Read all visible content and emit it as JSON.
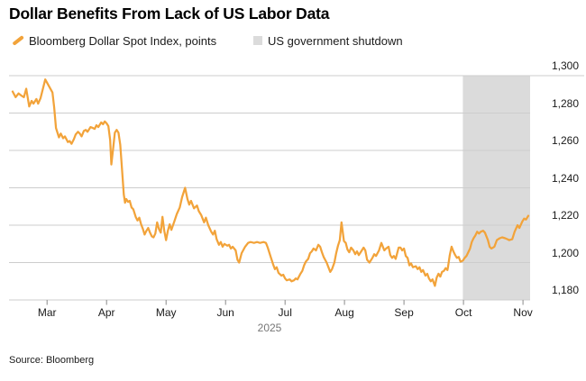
{
  "title": "Dollar Benefits From Lack of US Labor Data",
  "legend": {
    "series_label": "Bloomberg Dollar Spot Index, points",
    "band_label": "US government shutdown"
  },
  "source": "Source: Bloomberg",
  "colors": {
    "line": "#F2A33A",
    "band": "#DBDBDB",
    "grid": "#CDCDCD",
    "tick": "#8A8A8A",
    "axis_text": "#1A1A1A",
    "year_text": "#767676"
  },
  "chart_data": {
    "type": "line",
    "title": "Dollar Benefits From Lack of US Labor Data",
    "x_unit": "months since 2025-03-01",
    "x_range": [
      -0.64,
      8.12
    ],
    "x_tick_labels": [
      "Mar",
      "Apr",
      "May",
      "Jun",
      "Jul",
      "Aug",
      "Sep",
      "Oct",
      "Nov"
    ],
    "x_axis_label": "2025",
    "y_range": [
      1180,
      1300
    ],
    "y_ticks": [
      {
        "v": 1300,
        "label": "1,300"
      },
      {
        "v": 1280,
        "label": "1,280"
      },
      {
        "v": 1260,
        "label": "1,260"
      },
      {
        "v": 1240,
        "label": "1,240"
      },
      {
        "v": 1220,
        "label": "1,220"
      },
      {
        "v": 1200,
        "label": "1,200"
      },
      {
        "v": 1180,
        "label": "1,180"
      }
    ],
    "grid": "horizontal",
    "legend_position": "top",
    "shaded_region": {
      "label": "US government shutdown",
      "x_from": 6.99,
      "x_to": 8.12
    },
    "series": [
      {
        "name": "Bloomberg Dollar Spot Index, points",
        "points": [
          [
            -0.58,
            1291.5
          ],
          [
            -0.53,
            1288.5
          ],
          [
            -0.48,
            1290.5
          ],
          [
            -0.44,
            1289.5
          ],
          [
            -0.39,
            1288.5
          ],
          [
            -0.35,
            1293
          ],
          [
            -0.3,
            1283.5
          ],
          [
            -0.26,
            1286.5
          ],
          [
            -0.23,
            1285
          ],
          [
            -0.18,
            1287.5
          ],
          [
            -0.15,
            1285
          ],
          [
            -0.11,
            1288
          ],
          [
            -0.03,
            1298
          ],
          [
            0.03,
            1294.5
          ],
          [
            0.09,
            1291
          ],
          [
            0.12,
            1283
          ],
          [
            0.15,
            1272
          ],
          [
            0.2,
            1267
          ],
          [
            0.23,
            1269
          ],
          [
            0.27,
            1266.5
          ],
          [
            0.3,
            1267.5
          ],
          [
            0.35,
            1264.5
          ],
          [
            0.38,
            1265
          ],
          [
            0.41,
            1263.5
          ],
          [
            0.45,
            1266
          ],
          [
            0.48,
            1268.5
          ],
          [
            0.52,
            1270
          ],
          [
            0.55,
            1269
          ],
          [
            0.58,
            1267.5
          ],
          [
            0.62,
            1270.5
          ],
          [
            0.65,
            1271
          ],
          [
            0.68,
            1270
          ],
          [
            0.73,
            1272.5
          ],
          [
            0.77,
            1272
          ],
          [
            0.8,
            1271.5
          ],
          [
            0.83,
            1273.5
          ],
          [
            0.86,
            1272.5
          ],
          [
            0.91,
            1275
          ],
          [
            0.94,
            1274
          ],
          [
            0.97,
            1275.5
          ],
          [
            1.0,
            1274.5
          ],
          [
            1.03,
            1273
          ],
          [
            1.06,
            1265.5
          ],
          [
            1.08,
            1252.5
          ],
          [
            1.11,
            1261
          ],
          [
            1.14,
            1269.5
          ],
          [
            1.17,
            1271
          ],
          [
            1.2,
            1269.5
          ],
          [
            1.23,
            1263
          ],
          [
            1.26,
            1249.5
          ],
          [
            1.29,
            1236.5
          ],
          [
            1.31,
            1232
          ],
          [
            1.33,
            1234
          ],
          [
            1.36,
            1232.5
          ],
          [
            1.39,
            1233
          ],
          [
            1.42,
            1229.5
          ],
          [
            1.45,
            1228.5
          ],
          [
            1.49,
            1224.5
          ],
          [
            1.52,
            1222.5
          ],
          [
            1.55,
            1224
          ],
          [
            1.58,
            1220.5
          ],
          [
            1.61,
            1218
          ],
          [
            1.64,
            1215
          ],
          [
            1.67,
            1217
          ],
          [
            1.7,
            1218.5
          ],
          [
            1.73,
            1216
          ],
          [
            1.76,
            1214
          ],
          [
            1.79,
            1213.5
          ],
          [
            1.82,
            1215.5
          ],
          [
            1.85,
            1221.5
          ],
          [
            1.88,
            1218
          ],
          [
            1.91,
            1216
          ],
          [
            1.94,
            1224.5
          ],
          [
            1.97,
            1217
          ],
          [
            2.0,
            1212
          ],
          [
            2.03,
            1217
          ],
          [
            2.06,
            1220.5
          ],
          [
            2.09,
            1217.5
          ],
          [
            2.14,
            1222
          ],
          [
            2.18,
            1226
          ],
          [
            2.23,
            1229.5
          ],
          [
            2.27,
            1235
          ],
          [
            2.32,
            1240
          ],
          [
            2.36,
            1234
          ],
          [
            2.39,
            1231
          ],
          [
            2.42,
            1233
          ],
          [
            2.47,
            1229
          ],
          [
            2.52,
            1230.5
          ],
          [
            2.55,
            1227.5
          ],
          [
            2.59,
            1225.5
          ],
          [
            2.64,
            1221.5
          ],
          [
            2.67,
            1224
          ],
          [
            2.71,
            1220
          ],
          [
            2.76,
            1216.5
          ],
          [
            2.79,
            1215
          ],
          [
            2.82,
            1217
          ],
          [
            2.85,
            1212.5
          ],
          [
            2.89,
            1209.5
          ],
          [
            2.92,
            1211
          ],
          [
            2.95,
            1208.5
          ],
          [
            2.98,
            1210
          ],
          [
            3.03,
            1209
          ],
          [
            3.06,
            1209.5
          ],
          [
            3.09,
            1207.5
          ],
          [
            3.12,
            1208.5
          ],
          [
            3.17,
            1206.5
          ],
          [
            3.2,
            1201.5
          ],
          [
            3.23,
            1200
          ],
          [
            3.27,
            1205
          ],
          [
            3.33,
            1208.5
          ],
          [
            3.38,
            1210.5
          ],
          [
            3.42,
            1211
          ],
          [
            3.48,
            1210.5
          ],
          [
            3.53,
            1211
          ],
          [
            3.58,
            1210.5
          ],
          [
            3.64,
            1211
          ],
          [
            3.68,
            1210.5
          ],
          [
            3.71,
            1208
          ],
          [
            3.76,
            1203
          ],
          [
            3.8,
            1199
          ],
          [
            3.83,
            1196.5
          ],
          [
            3.86,
            1197.5
          ],
          [
            3.89,
            1194.5
          ],
          [
            3.94,
            1193
          ],
          [
            3.97,
            1193.5
          ],
          [
            4.0,
            1191.5
          ],
          [
            4.03,
            1190.5
          ],
          [
            4.08,
            1191
          ],
          [
            4.11,
            1190
          ],
          [
            4.15,
            1190.5
          ],
          [
            4.18,
            1191.5
          ],
          [
            4.21,
            1191
          ],
          [
            4.26,
            1194
          ],
          [
            4.29,
            1195.5
          ],
          [
            4.32,
            1198.5
          ],
          [
            4.35,
            1200.5
          ],
          [
            4.39,
            1202
          ],
          [
            4.42,
            1205
          ],
          [
            4.45,
            1206
          ],
          [
            4.48,
            1207.5
          ],
          [
            4.52,
            1206.5
          ],
          [
            4.56,
            1209.5
          ],
          [
            4.59,
            1208.5
          ],
          [
            4.62,
            1205.5
          ],
          [
            4.65,
            1203
          ],
          [
            4.7,
            1200
          ],
          [
            4.73,
            1197.5
          ],
          [
            4.76,
            1195
          ],
          [
            4.79,
            1196.5
          ],
          [
            4.83,
            1200
          ],
          [
            4.86,
            1205
          ],
          [
            4.89,
            1209
          ],
          [
            4.92,
            1212
          ],
          [
            4.95,
            1221.5
          ],
          [
            4.99,
            1211.5
          ],
          [
            5.02,
            1210.5
          ],
          [
            5.05,
            1207
          ],
          [
            5.08,
            1205.5
          ],
          [
            5.11,
            1208
          ],
          [
            5.15,
            1206.5
          ],
          [
            5.18,
            1204.5
          ],
          [
            5.21,
            1206
          ],
          [
            5.24,
            1204
          ],
          [
            5.27,
            1205.5
          ],
          [
            5.32,
            1208
          ],
          [
            5.35,
            1206.5
          ],
          [
            5.38,
            1201.5
          ],
          [
            5.42,
            1200
          ],
          [
            5.47,
            1202.5
          ],
          [
            5.5,
            1204.5
          ],
          [
            5.53,
            1203.5
          ],
          [
            5.58,
            1206.5
          ],
          [
            5.62,
            1210.5
          ],
          [
            5.67,
            1206.5
          ],
          [
            5.7,
            1207.5
          ],
          [
            5.74,
            1208.5
          ],
          [
            5.77,
            1204
          ],
          [
            5.8,
            1202.5
          ],
          [
            5.83,
            1203.5
          ],
          [
            5.86,
            1202
          ],
          [
            5.91,
            1208
          ],
          [
            5.94,
            1208
          ],
          [
            5.97,
            1206.5
          ],
          [
            6.0,
            1207.5
          ],
          [
            6.03,
            1203.5
          ],
          [
            6.06,
            1202.5
          ],
          [
            6.09,
            1198.5
          ],
          [
            6.12,
            1199.5
          ],
          [
            6.15,
            1197.5
          ],
          [
            6.2,
            1198
          ],
          [
            6.23,
            1196.5
          ],
          [
            6.26,
            1197.5
          ],
          [
            6.29,
            1195
          ],
          [
            6.32,
            1196
          ],
          [
            6.36,
            1193
          ],
          [
            6.39,
            1194
          ],
          [
            6.42,
            1191.5
          ],
          [
            6.45,
            1190
          ],
          [
            6.48,
            1191
          ],
          [
            6.52,
            1187.5
          ],
          [
            6.55,
            1192
          ],
          [
            6.58,
            1194
          ],
          [
            6.61,
            1192.5
          ],
          [
            6.64,
            1195
          ],
          [
            6.67,
            1195.5
          ],
          [
            6.7,
            1197
          ],
          [
            6.73,
            1196
          ],
          [
            6.74,
            1197.5
          ],
          [
            6.77,
            1204
          ],
          [
            6.8,
            1208.5
          ],
          [
            6.83,
            1206
          ],
          [
            6.86,
            1204
          ],
          [
            6.89,
            1202.5
          ],
          [
            6.92,
            1203
          ],
          [
            6.95,
            1200.5
          ],
          [
            6.99,
            1201
          ],
          [
            7.02,
            1202.5
          ],
          [
            7.05,
            1203.5
          ],
          [
            7.08,
            1205.5
          ],
          [
            7.11,
            1207.5
          ],
          [
            7.14,
            1211
          ],
          [
            7.17,
            1213
          ],
          [
            7.2,
            1214.5
          ],
          [
            7.23,
            1216.5
          ],
          [
            7.26,
            1215.5
          ],
          [
            7.29,
            1216.5
          ],
          [
            7.33,
            1217
          ],
          [
            7.36,
            1216
          ],
          [
            7.41,
            1212
          ],
          [
            7.44,
            1208.5
          ],
          [
            7.47,
            1207.5
          ],
          [
            7.52,
            1208.5
          ],
          [
            7.56,
            1212
          ],
          [
            7.61,
            1213
          ],
          [
            7.65,
            1213.5
          ],
          [
            7.7,
            1213
          ],
          [
            7.74,
            1212.5
          ],
          [
            7.77,
            1212
          ],
          [
            7.82,
            1212.5
          ],
          [
            7.86,
            1216.5
          ],
          [
            7.91,
            1220
          ],
          [
            7.94,
            1218.5
          ],
          [
            7.99,
            1222
          ],
          [
            8.02,
            1223.5
          ],
          [
            8.05,
            1223
          ],
          [
            8.09,
            1225
          ]
        ]
      }
    ]
  }
}
